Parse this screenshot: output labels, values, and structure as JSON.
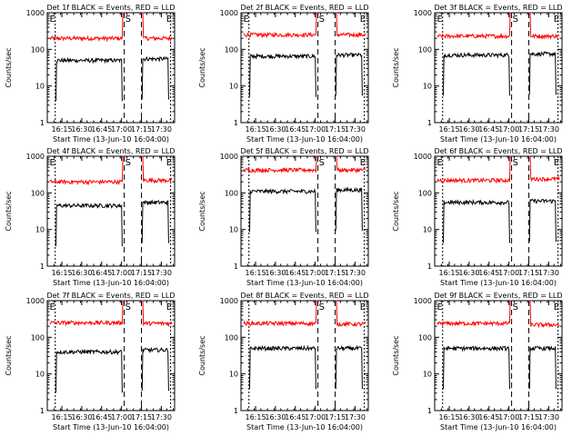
{
  "chart_data": [
    {
      "type": "line",
      "title": "Det 1f BLACK = Events, RED = LLD",
      "xlabel": "Start Time (13-Jun-10 16:04:00)",
      "ylabel": "Counts/sec",
      "ylim": [
        1,
        1000
      ],
      "yscale": "log",
      "xlim": [
        "16:04",
        "17:40"
      ],
      "x_ticks": [
        "16:15",
        "16:30",
        "16:45",
        "17:00",
        "17:15",
        "17:30"
      ],
      "y_ticks": [
        "1",
        "10",
        "100",
        "1000"
      ],
      "markers": [
        "E",
        "S",
        "E"
      ],
      "series": [
        {
          "color": "#ff0000",
          "level": 200,
          "x_range": [
            "16:06",
            "17:02"
          ],
          "x_range2": [
            "17:15",
            "17:38"
          ],
          "level2": 200
        },
        {
          "color": "#000000",
          "level": 50,
          "x_range": [
            "16:10",
            "17:01"
          ],
          "x_range2": [
            "17:15",
            "17:36"
          ],
          "level2": 55
        }
      ]
    },
    {
      "type": "line",
      "title": "Det 2f BLACK = Events, RED = LLD",
      "xlabel": "Start Time (13-Jun-10 16:04:00)",
      "ylabel": "Counts/sec",
      "ylim": [
        1,
        1000
      ],
      "yscale": "log",
      "xlim": [
        "16:04",
        "17:40"
      ],
      "x_ticks": [
        "16:15",
        "16:30",
        "16:45",
        "17:00",
        "17:15",
        "17:30"
      ],
      "y_ticks": [
        "1",
        "10",
        "100",
        "1000"
      ],
      "markers": [
        "E",
        "S",
        "E"
      ],
      "series": [
        {
          "color": "#ff0000",
          "level": 250,
          "x_range": [
            "16:06",
            "17:02"
          ],
          "x_range2": [
            "17:15",
            "17:38"
          ],
          "level2": 250
        },
        {
          "color": "#000000",
          "level": 65,
          "x_range": [
            "16:10",
            "17:01"
          ],
          "x_range2": [
            "17:15",
            "17:36"
          ],
          "level2": 70
        }
      ]
    },
    {
      "type": "line",
      "title": "Det 3f BLACK = Events, RED = LLD",
      "xlabel": "Start Time (13-Jun-10 16:04:00)",
      "ylabel": "Counts/sec",
      "ylim": [
        1,
        1000
      ],
      "yscale": "log",
      "xlim": [
        "16:04",
        "17:40"
      ],
      "x_ticks": [
        "16:15",
        "16:30",
        "16:45",
        "17:00",
        "17:15",
        "17:30"
      ],
      "y_ticks": [
        "1",
        "10",
        "100",
        "1000"
      ],
      "markers": [
        "E",
        "S",
        "E"
      ],
      "series": [
        {
          "color": "#ff0000",
          "level": 230,
          "x_range": [
            "16:06",
            "17:02"
          ],
          "x_range2": [
            "17:15",
            "17:38"
          ],
          "level2": 230
        },
        {
          "color": "#000000",
          "level": 70,
          "x_range": [
            "16:10",
            "17:01"
          ],
          "x_range2": [
            "17:15",
            "17:36"
          ],
          "level2": 75
        }
      ]
    },
    {
      "type": "line",
      "title": "Det 4f BLACK = Events, RED = LLD",
      "xlabel": "Start Time (13-Jun-10 16:04:00)",
      "ylabel": "Counts/sec",
      "ylim": [
        1,
        1000
      ],
      "yscale": "log",
      "xlim": [
        "16:04",
        "17:40"
      ],
      "x_ticks": [
        "16:15",
        "16:30",
        "16:45",
        "17:00",
        "17:15",
        "17:30"
      ],
      "y_ticks": [
        "1",
        "10",
        "100",
        "1000"
      ],
      "markers": [
        "E",
        "S",
        "E"
      ],
      "series": [
        {
          "color": "#ff0000",
          "level": 200,
          "x_range": [
            "16:06",
            "17:02"
          ],
          "x_range2": [
            "17:15",
            "17:38"
          ],
          "level2": 220
        },
        {
          "color": "#000000",
          "level": 45,
          "x_range": [
            "16:10",
            "17:01"
          ],
          "x_range2": [
            "17:15",
            "17:36"
          ],
          "level2": 55
        }
      ]
    },
    {
      "type": "line",
      "title": "Det 5f BLACK = Events, RED = LLD",
      "xlabel": "Start Time (13-Jun-10 16:04:00)",
      "ylabel": "Counts/sec",
      "ylim": [
        1,
        1000
      ],
      "yscale": "log",
      "xlim": [
        "16:04",
        "17:40"
      ],
      "x_ticks": [
        "16:15",
        "16:30",
        "16:45",
        "17:00",
        "17:15",
        "17:30"
      ],
      "y_ticks": [
        "1",
        "10",
        "100",
        "1000"
      ],
      "markers": [
        "S",
        "E"
      ],
      "series": [
        {
          "color": "#ff0000",
          "level": 420,
          "x_range": [
            "16:06",
            "17:02"
          ],
          "x_range2": [
            "17:15",
            "17:38"
          ],
          "level2": 420
        },
        {
          "color": "#000000",
          "level": 110,
          "x_range": [
            "16:10",
            "17:01"
          ],
          "x_range2": [
            "17:15",
            "17:36"
          ],
          "level2": 120
        }
      ]
    },
    {
      "type": "line",
      "title": "Det 6f BLACK = Events, RED = LLD",
      "xlabel": "Start Time (13-Jun-10 16:04:00)",
      "ylabel": "Counts/sec",
      "ylim": [
        1,
        1000
      ],
      "yscale": "log",
      "xlim": [
        "16:04",
        "17:40"
      ],
      "x_ticks": [
        "16:15",
        "16:30",
        "16:45",
        "17:00",
        "17:15",
        "17:30"
      ],
      "y_ticks": [
        "1",
        "10",
        "100",
        "1000"
      ],
      "markers": [
        "E",
        "S",
        "E"
      ],
      "series": [
        {
          "color": "#ff0000",
          "level": 220,
          "x_range": [
            "16:06",
            "17:02"
          ],
          "x_range2": [
            "17:15",
            "17:38"
          ],
          "level2": 240
        },
        {
          "color": "#000000",
          "level": 55,
          "x_range": [
            "16:10",
            "17:01"
          ],
          "x_range2": [
            "17:15",
            "17:36"
          ],
          "level2": 60
        }
      ]
    },
    {
      "type": "line",
      "title": "Det 7f BLACK = Events, RED = LLD",
      "xlabel": "Start Time (13-Jun-10 16:04:00)",
      "ylabel": "Counts/sec",
      "ylim": [
        1,
        1000
      ],
      "yscale": "log",
      "xlim": [
        "16:04",
        "17:40"
      ],
      "x_ticks": [
        "16:15",
        "16:30",
        "16:45",
        "17:00",
        "17:15",
        "17:30"
      ],
      "y_ticks": [
        "1",
        "10",
        "100",
        "1000"
      ],
      "markers": [
        "E",
        "S",
        "E"
      ],
      "series": [
        {
          "color": "#ff0000",
          "level": 250,
          "x_range": [
            "16:06",
            "17:02"
          ],
          "x_range2": [
            "17:15",
            "17:38"
          ],
          "level2": 240
        },
        {
          "color": "#000000",
          "level": 40,
          "x_range": [
            "16:10",
            "17:01"
          ],
          "x_range2": [
            "17:15",
            "17:36"
          ],
          "level2": 45
        }
      ]
    },
    {
      "type": "line",
      "title": "Det 8f BLACK = Events, RED = LLD",
      "xlabel": "Start Time (13-Jun-10 16:04:00)",
      "ylabel": "Counts/sec",
      "ylim": [
        1,
        1000
      ],
      "yscale": "log",
      "xlim": [
        "16:04",
        "17:40"
      ],
      "x_ticks": [
        "16:15",
        "16:30",
        "16:45",
        "17:00",
        "17:15",
        "17:30"
      ],
      "y_ticks": [
        "1",
        "10",
        "100",
        "1000"
      ],
      "markers": [
        "S",
        "E"
      ],
      "series": [
        {
          "color": "#ff0000",
          "level": 240,
          "x_range": [
            "16:06",
            "17:02"
          ],
          "x_range2": [
            "17:15",
            "17:38"
          ],
          "level2": 230
        },
        {
          "color": "#000000",
          "level": 50,
          "x_range": [
            "16:10",
            "17:01"
          ],
          "x_range2": [
            "17:15",
            "17:36"
          ],
          "level2": 50
        }
      ]
    },
    {
      "type": "line",
      "title": "Det 9f BLACK = Events, RED = LLD",
      "xlabel": "Start Time (13-Jun-10 16:04:00)",
      "ylabel": "Counts/sec",
      "ylim": [
        1,
        1000
      ],
      "yscale": "log",
      "xlim": [
        "16:04",
        "17:40"
      ],
      "x_ticks": [
        "16:15",
        "16:30",
        "16:45",
        "17:00",
        "17:15",
        "17:30"
      ],
      "y_ticks": [
        "1",
        "10",
        "100",
        "1000"
      ],
      "markers": [
        "E",
        "S",
        "E"
      ],
      "series": [
        {
          "color": "#ff0000",
          "level": 240,
          "x_range": [
            "16:06",
            "17:02"
          ],
          "x_range2": [
            "17:15",
            "17:38"
          ],
          "level2": 220
        },
        {
          "color": "#000000",
          "level": 50,
          "x_range": [
            "16:10",
            "17:01"
          ],
          "x_range2": [
            "17:15",
            "17:36"
          ],
          "level2": 50
        }
      ]
    }
  ]
}
